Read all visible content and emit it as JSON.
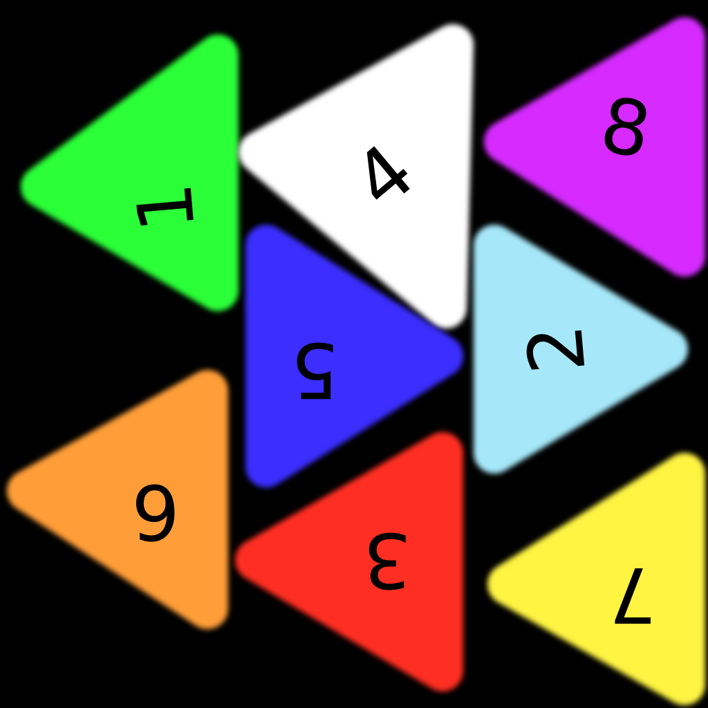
{
  "background": "#000000",
  "tiles": [
    {
      "id": "green",
      "label": "1",
      "color": "#2aff38"
    },
    {
      "id": "white",
      "label": "4",
      "color": "#ffffff"
    },
    {
      "id": "purple",
      "label": "8",
      "color": "#d62cff"
    },
    {
      "id": "blue",
      "label": "5",
      "color": "#3a2dff"
    },
    {
      "id": "light-blue",
      "label": "2",
      "color": "#a6e8fa"
    },
    {
      "id": "orange",
      "label": "6",
      "color": "#ff9e38"
    },
    {
      "id": "red",
      "label": "3",
      "color": "#ff2e22"
    },
    {
      "id": "yellow",
      "label": "7",
      "color": "#fff442"
    }
  ]
}
